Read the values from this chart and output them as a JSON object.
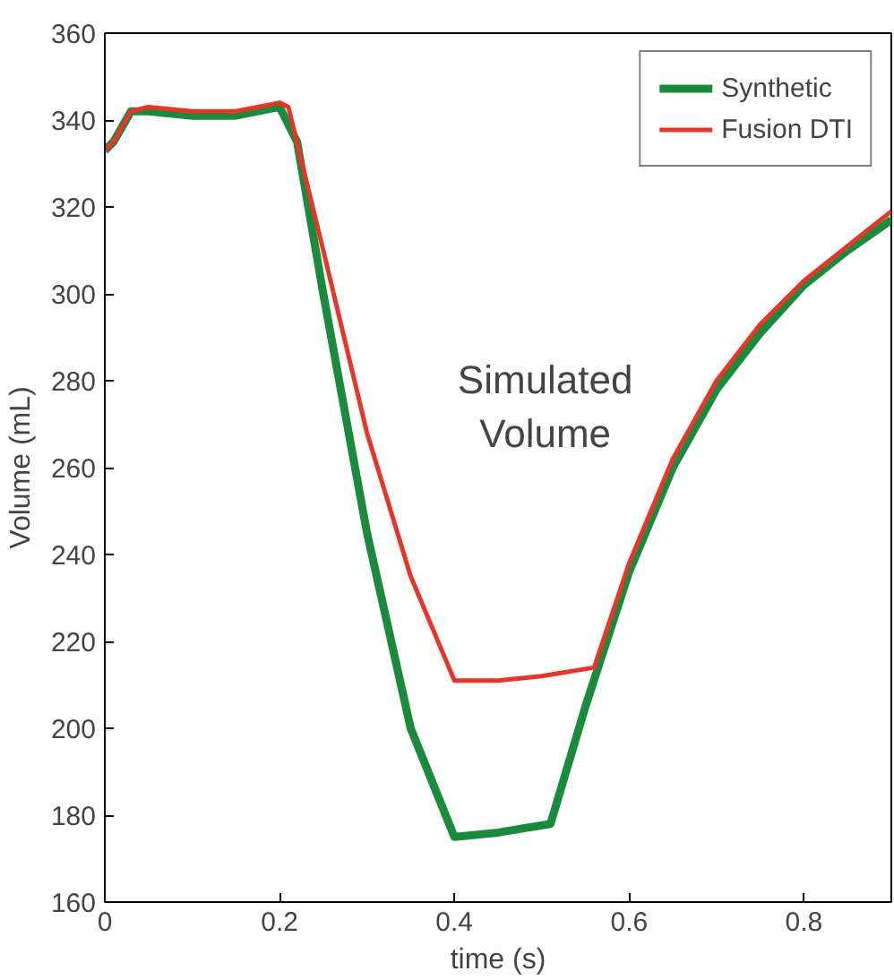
{
  "chart_data": {
    "type": "line",
    "xlabel": "time (s)",
    "ylabel": "Volume (mL)",
    "xlim": [
      0,
      0.9
    ],
    "ylim": [
      160,
      360
    ],
    "xticks": [
      0,
      0.2,
      0.4,
      0.6,
      0.8
    ],
    "yticks": [
      160,
      180,
      200,
      220,
      240,
      260,
      280,
      300,
      320,
      340,
      360
    ],
    "grid": false,
    "legend": "top right",
    "line_style": "solid",
    "annotations": [
      "Simulated\nVolume"
    ],
    "series": [
      {
        "name": "Synthetic",
        "color": "#1a8a3c",
        "x": [
          0,
          0.01,
          0.03,
          0.05,
          0.1,
          0.15,
          0.2,
          0.22,
          0.25,
          0.3,
          0.35,
          0.4,
          0.45,
          0.51,
          0.55,
          0.6,
          0.65,
          0.7,
          0.75,
          0.8,
          0.85,
          0.9
        ],
        "values": [
          333,
          335,
          342,
          342,
          341,
          341,
          343,
          335,
          300,
          245,
          200,
          175,
          176,
          178,
          205,
          236,
          260,
          278,
          291,
          302,
          310,
          317
        ]
      },
      {
        "name": "Fusion DTI",
        "color": "#e8352a",
        "x": [
          0,
          0.01,
          0.03,
          0.05,
          0.1,
          0.15,
          0.2,
          0.21,
          0.25,
          0.3,
          0.35,
          0.4,
          0.45,
          0.5,
          0.56,
          0.6,
          0.65,
          0.7,
          0.75,
          0.8,
          0.85,
          0.9
        ],
        "values": [
          333,
          335,
          342,
          343,
          342,
          342,
          344,
          343,
          310,
          268,
          235,
          211,
          211,
          212,
          214,
          238,
          262,
          280,
          293,
          303,
          311,
          319
        ]
      }
    ]
  }
}
